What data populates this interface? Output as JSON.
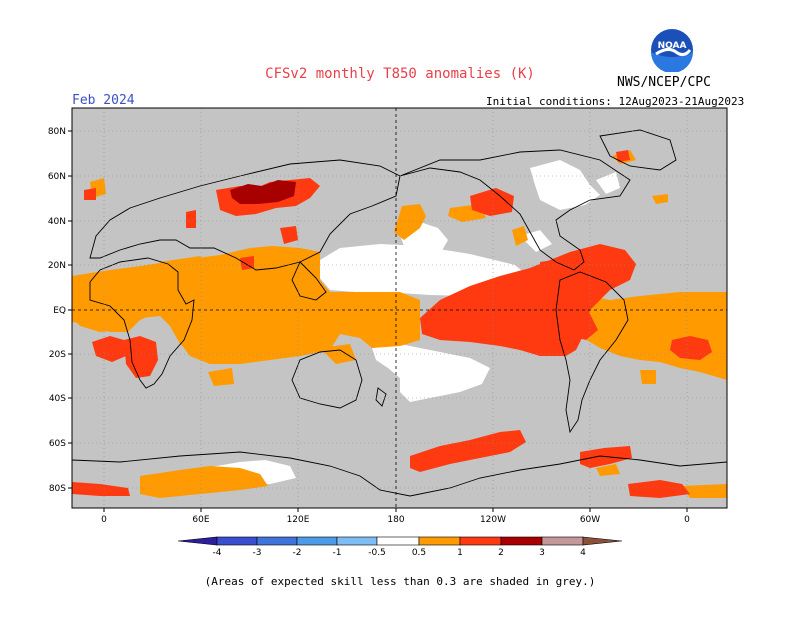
{
  "title": "CFSv2 monthly T850 anomalies (K)",
  "agency": "NWS/NCEP/CPC",
  "logo_text": "NOAA",
  "period": "Feb 2024",
  "initial_conditions": "Initial conditions: 12Aug2023-21Aug2023",
  "footnote": "(Areas of expected skill less than 0.3 are shaded in grey.)",
  "lat_labels": [
    "80N",
    "60N",
    "40N",
    "20N",
    "EQ",
    "20S",
    "40S",
    "60S",
    "80S"
  ],
  "lon_labels": [
    "0",
    "60E",
    "120E",
    "180",
    "120W",
    "60W",
    "0"
  ],
  "colorbar": {
    "labels": [
      "-4",
      "-3",
      "-2",
      "-1",
      "-0.5",
      "0.5",
      "1",
      "2",
      "3",
      "4"
    ],
    "colors": [
      "#2b1fa0",
      "#3a4fd0",
      "#3f74dc",
      "#4c9ae8",
      "#7dbdf4",
      "#ffffff",
      "#ff9a00",
      "#ff3a10",
      "#a80000",
      "#c4989a",
      "#8a5038"
    ]
  },
  "colors": {
    "grey_shade": "#c4c4c4",
    "white": "#ffffff",
    "orange": "#ff9a00",
    "red": "#ff3a10",
    "darkred": "#a80000",
    "title_red": "#e8414b",
    "period_blue": "#3b50c8"
  }
}
